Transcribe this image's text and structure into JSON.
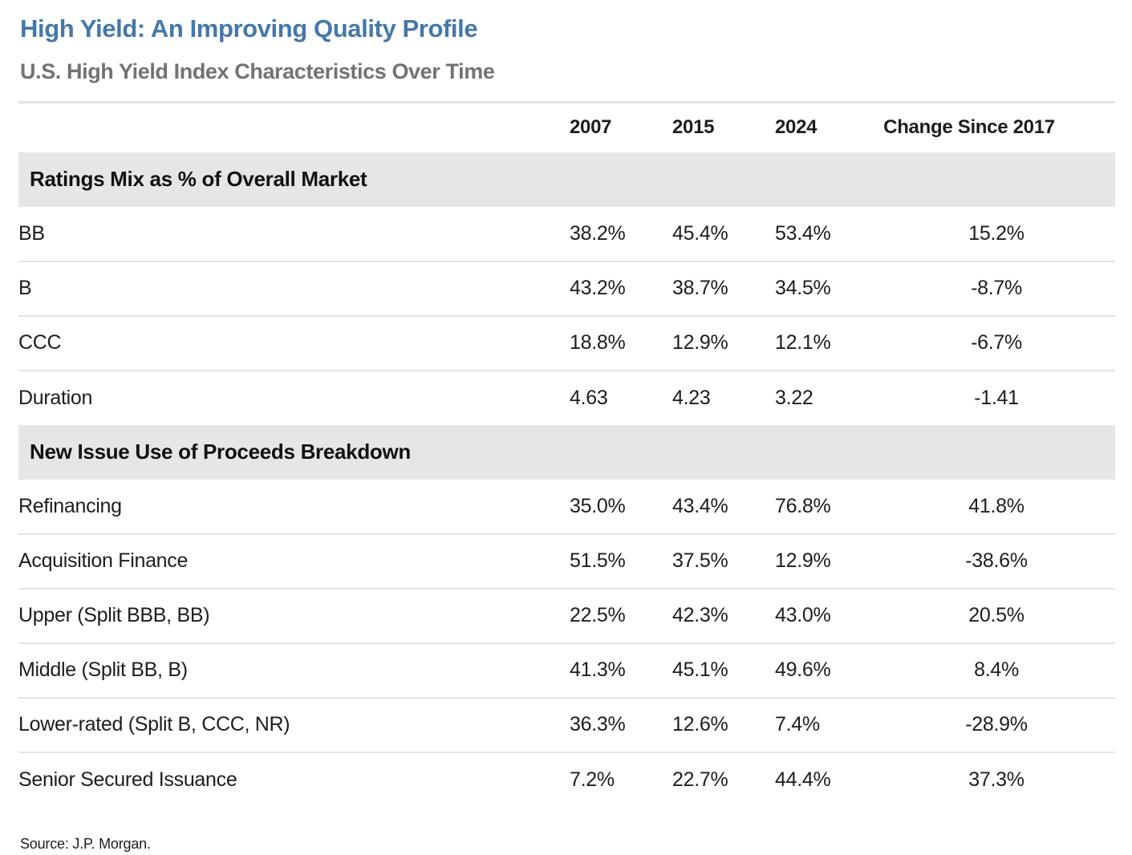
{
  "title": "High Yield: An Improving Quality Profile",
  "subtitle": "U.S. High Yield Index Characteristics Over Time",
  "source": "Source: J.P. Morgan.",
  "colors": {
    "title_accent": "#4478a9",
    "subtitle_gray": "#707377",
    "section_band": "#e6e6e4",
    "divider": "#e2e2e2",
    "body_text": "#1d1d1d"
  },
  "table": {
    "columns": [
      "2007",
      "2015",
      "2024",
      "Change Since 2017"
    ],
    "sections": [
      {
        "header": "Ratings Mix as % of Overall Market",
        "rows": [
          {
            "label": "BB",
            "values": [
              "38.2%",
              "45.4%",
              "53.4%",
              "15.2%"
            ]
          },
          {
            "label": "B",
            "values": [
              "43.2%",
              "38.7%",
              "34.5%",
              "-8.7%"
            ]
          },
          {
            "label": "CCC",
            "values": [
              "18.8%",
              "12.9%",
              "12.1%",
              "-6.7%"
            ]
          },
          {
            "label": "Duration",
            "values": [
              "4.63",
              "4.23",
              "3.22",
              "-1.41"
            ]
          }
        ]
      },
      {
        "header": "New Issue Use of Proceeds Breakdown",
        "rows": [
          {
            "label": "Refinancing",
            "values": [
              "35.0%",
              "43.4%",
              "76.8%",
              "41.8%"
            ]
          },
          {
            "label": "Acquisition Finance",
            "values": [
              "51.5%",
              "37.5%",
              "12.9%",
              "-38.6%"
            ]
          },
          {
            "label": "Upper (Split BBB, BB)",
            "values": [
              "22.5%",
              "42.3%",
              "43.0%",
              "20.5%"
            ]
          },
          {
            "label": "Middle (Split BB, B)",
            "values": [
              "41.3%",
              "45.1%",
              "49.6%",
              "8.4%"
            ]
          },
          {
            "label": "Lower-rated (Split B, CCC, NR)",
            "values": [
              "36.3%",
              "12.6%",
              "7.4%",
              "-28.9%"
            ]
          },
          {
            "label": "Senior Secured Issuance",
            "values": [
              "7.2%",
              "22.7%",
              "44.4%",
              "37.3%"
            ]
          }
        ]
      }
    ]
  }
}
